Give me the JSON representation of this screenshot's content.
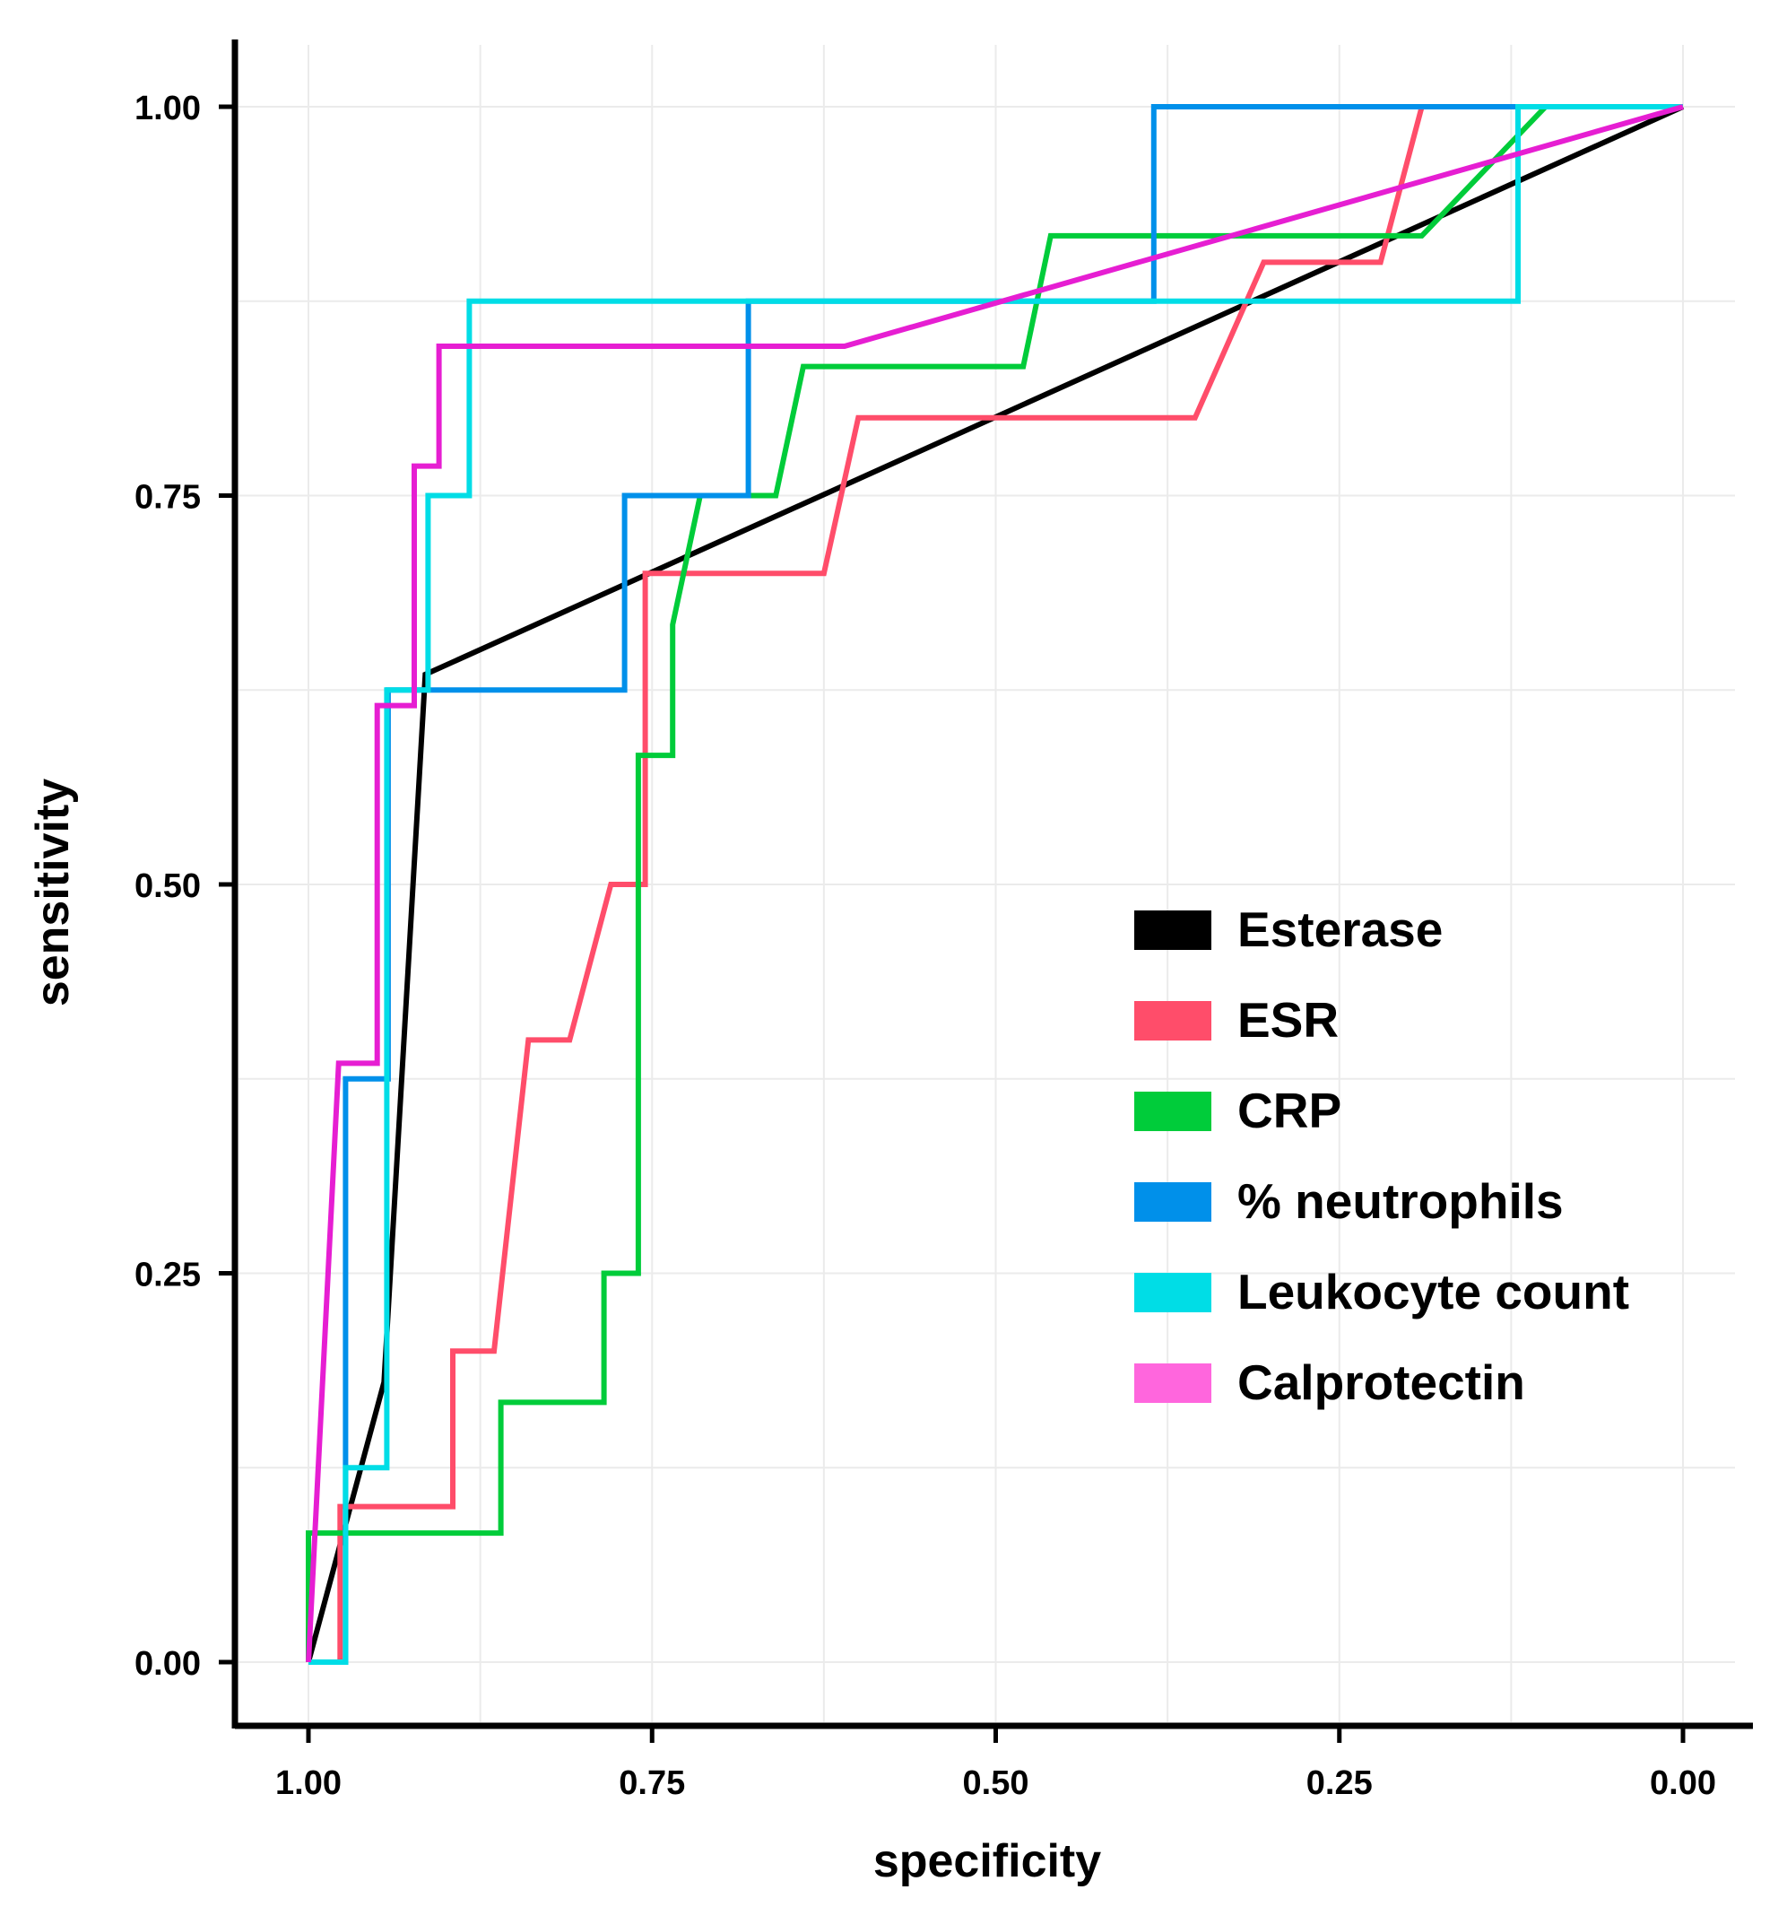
{
  "chart_data": {
    "type": "line",
    "title": "",
    "xlabel": "specificity",
    "ylabel": "sensitivity",
    "xlim": [
      1.0,
      0.0
    ],
    "ylim": [
      0.0,
      1.0
    ],
    "x_reversed": true,
    "grid": true,
    "legend_position": "center-right",
    "x_ticks": [
      1.0,
      0.75,
      0.5,
      0.25,
      0.0
    ],
    "x_tick_labels": [
      "1.00",
      "0.75",
      "0.50",
      "0.25",
      "0.00"
    ],
    "y_ticks": [
      0.0,
      0.25,
      0.5,
      0.75,
      1.0
    ],
    "y_tick_labels": [
      "0.00",
      "0.25",
      "0.50",
      "0.75",
      "1.00"
    ],
    "series": [
      {
        "name": "Esterase",
        "color": "#000000",
        "points": [
          [
            1.0,
            0.0
          ],
          [
            0.945,
            0.18
          ],
          [
            0.915,
            0.635
          ],
          [
            0.0,
            1.0
          ]
        ]
      },
      {
        "name": "ESR",
        "color": "#ff4d6a",
        "points": [
          [
            1.0,
            0.0
          ],
          [
            0.977,
            0.0
          ],
          [
            0.977,
            0.1
          ],
          [
            0.895,
            0.1
          ],
          [
            0.895,
            0.2
          ],
          [
            0.865,
            0.2
          ],
          [
            0.84,
            0.4
          ],
          [
            0.81,
            0.4
          ],
          [
            0.78,
            0.5
          ],
          [
            0.755,
            0.5
          ],
          [
            0.755,
            0.7
          ],
          [
            0.625,
            0.7
          ],
          [
            0.6,
            0.8
          ],
          [
            0.355,
            0.8
          ],
          [
            0.305,
            0.9
          ],
          [
            0.22,
            0.9
          ],
          [
            0.19,
            1.0
          ]
        ]
      },
      {
        "name": "CRP",
        "color": "#00cc3a",
        "points": [
          [
            1.0,
            0.0
          ],
          [
            1.0,
            0.083
          ],
          [
            0.86,
            0.083
          ],
          [
            0.86,
            0.167
          ],
          [
            0.785,
            0.167
          ],
          [
            0.785,
            0.25
          ],
          [
            0.76,
            0.25
          ],
          [
            0.76,
            0.583
          ],
          [
            0.735,
            0.583
          ],
          [
            0.735,
            0.667
          ],
          [
            0.715,
            0.75
          ],
          [
            0.66,
            0.75
          ],
          [
            0.64,
            0.833
          ],
          [
            0.48,
            0.833
          ],
          [
            0.46,
            0.917
          ],
          [
            0.19,
            0.917
          ],
          [
            0.1,
            1.0
          ]
        ]
      },
      {
        "name": "% neutrophils",
        "color": "#0090ea",
        "points": [
          [
            1.0,
            0.0
          ],
          [
            0.973,
            0.0
          ],
          [
            0.973,
            0.375
          ],
          [
            0.942,
            0.375
          ],
          [
            0.942,
            0.625
          ],
          [
            0.77,
            0.625
          ],
          [
            0.77,
            0.75
          ],
          [
            0.68,
            0.75
          ],
          [
            0.68,
            0.875
          ],
          [
            0.385,
            0.875
          ],
          [
            0.385,
            1.0
          ],
          [
            0.0,
            1.0
          ]
        ]
      },
      {
        "name": "Leukocyte count",
        "color": "#00dde6",
        "points": [
          [
            1.0,
            0.0
          ],
          [
            0.973,
            0.0
          ],
          [
            0.973,
            0.125
          ],
          [
            0.943,
            0.125
          ],
          [
            0.943,
            0.625
          ],
          [
            0.913,
            0.625
          ],
          [
            0.913,
            0.75
          ],
          [
            0.883,
            0.75
          ],
          [
            0.883,
            0.875
          ],
          [
            0.12,
            0.875
          ],
          [
            0.12,
            1.0
          ],
          [
            0.0,
            1.0
          ]
        ]
      },
      {
        "name": "Calprotectin",
        "color": "#e61ed2",
        "legend_color": "#ff66dd",
        "points": [
          [
            1.0,
            0.0
          ],
          [
            0.978,
            0.385
          ],
          [
            0.95,
            0.385
          ],
          [
            0.95,
            0.615
          ],
          [
            0.923,
            0.615
          ],
          [
            0.923,
            0.769
          ],
          [
            0.905,
            0.769
          ],
          [
            0.905,
            0.846
          ],
          [
            0.61,
            0.846
          ],
          [
            0.0,
            1.0
          ]
        ]
      }
    ]
  }
}
